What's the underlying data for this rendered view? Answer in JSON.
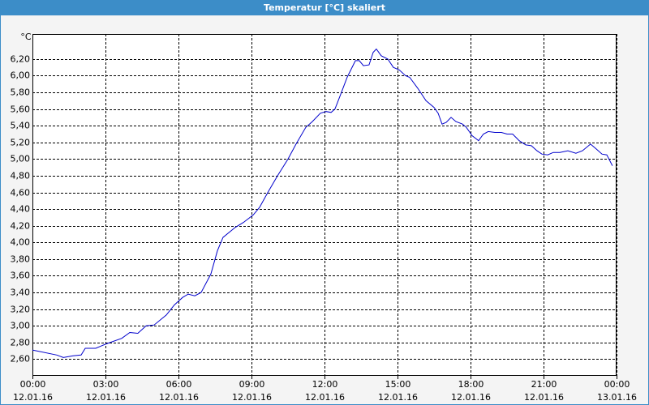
{
  "chart_data": {
    "type": "line",
    "title": "Temperatur [°C] skaliert",
    "y_label": "°C",
    "grid": true,
    "xlim": [
      0,
      24
    ],
    "ylim": [
      2.4,
      6.5
    ],
    "xticks": [
      {
        "value": 0,
        "label": [
          "00:00",
          "12.01.16"
        ]
      },
      {
        "value": 3,
        "label": [
          "03:00",
          "12.01.16"
        ]
      },
      {
        "value": 6,
        "label": [
          "06:00",
          "12.01.16"
        ]
      },
      {
        "value": 9,
        "label": [
          "09:00",
          "12.01.16"
        ]
      },
      {
        "value": 12,
        "label": [
          "12:00",
          "12.01.16"
        ]
      },
      {
        "value": 15,
        "label": [
          "15:00",
          "12.01.16"
        ]
      },
      {
        "value": 18,
        "label": [
          "18:00",
          "12.01.16"
        ]
      },
      {
        "value": 21,
        "label": [
          "21:00",
          "12.01.16"
        ]
      },
      {
        "value": 24,
        "label": [
          "00:00",
          "13.01.16"
        ]
      }
    ],
    "yticks": [
      {
        "value": 2.6,
        "label": "2,60"
      },
      {
        "value": 2.8,
        "label": "2,80"
      },
      {
        "value": 3.0,
        "label": "3,00"
      },
      {
        "value": 3.2,
        "label": "3,20"
      },
      {
        "value": 3.4,
        "label": "3,40"
      },
      {
        "value": 3.6,
        "label": "3,60"
      },
      {
        "value": 3.8,
        "label": "3,80"
      },
      {
        "value": 4.0,
        "label": "4,00"
      },
      {
        "value": 4.2,
        "label": "4,20"
      },
      {
        "value": 4.4,
        "label": "4,40"
      },
      {
        "value": 4.6,
        "label": "4,60"
      },
      {
        "value": 4.8,
        "label": "4,80"
      },
      {
        "value": 5.0,
        "label": "5,00"
      },
      {
        "value": 5.2,
        "label": "5,20"
      },
      {
        "value": 5.4,
        "label": "5,40"
      },
      {
        "value": 5.6,
        "label": "5,60"
      },
      {
        "value": 5.8,
        "label": "5,80"
      },
      {
        "value": 6.0,
        "label": "6,00"
      },
      {
        "value": 6.2,
        "label": "6,20"
      }
    ],
    "color": "#0000cc",
    "x": [
      0,
      1,
      1.27,
      1.67,
      2,
      2.17,
      2.6,
      3,
      3.67,
      4,
      4.33,
      4.67,
      5,
      5.5,
      5.83,
      6.17,
      6.4,
      6.67,
      6.93,
      7.33,
      7.6,
      7.83,
      8.33,
      8.67,
      9.07,
      9.33,
      9.67,
      10.07,
      10.5,
      10.83,
      11.23,
      11.5,
      11.83,
      12.07,
      12.27,
      12.43,
      12.67,
      12.93,
      13.27,
      13.43,
      13.6,
      13.83,
      14,
      14.13,
      14.33,
      14.6,
      14.83,
      15.07,
      15.33,
      15.5,
      15.83,
      16.17,
      16.5,
      16.67,
      16.83,
      17,
      17.2,
      17.4,
      17.67,
      17.83,
      18.07,
      18.33,
      18.53,
      18.73,
      19,
      19.27,
      19.5,
      19.73,
      20,
      20.27,
      20.5,
      20.73,
      20.93,
      21.17,
      21.4,
      21.67,
      22,
      22.33,
      22.6,
      22.93,
      23.17,
      23.4,
      23.6,
      23.83
    ],
    "values": [
      2.71,
      2.65,
      2.62,
      2.64,
      2.65,
      2.73,
      2.73,
      2.78,
      2.85,
      2.92,
      2.91,
      3.0,
      3.01,
      3.13,
      3.25,
      3.34,
      3.38,
      3.36,
      3.4,
      3.62,
      3.9,
      4.06,
      4.18,
      4.24,
      4.33,
      4.42,
      4.6,
      4.8,
      5.0,
      5.18,
      5.38,
      5.45,
      5.55,
      5.57,
      5.56,
      5.6,
      5.78,
      5.98,
      6.18,
      6.18,
      6.12,
      6.13,
      6.28,
      6.32,
      6.24,
      6.2,
      6.1,
      6.07,
      6.0,
      5.98,
      5.85,
      5.7,
      5.62,
      5.55,
      5.42,
      5.44,
      5.5,
      5.45,
      5.42,
      5.38,
      5.28,
      5.22,
      5.3,
      5.33,
      5.32,
      5.32,
      5.3,
      5.3,
      5.22,
      5.17,
      5.16,
      5.1,
      5.06,
      5.05,
      5.08,
      5.08,
      5.1,
      5.07,
      5.1,
      5.18,
      5.12,
      5.06,
      5.05,
      4.92
    ]
  }
}
